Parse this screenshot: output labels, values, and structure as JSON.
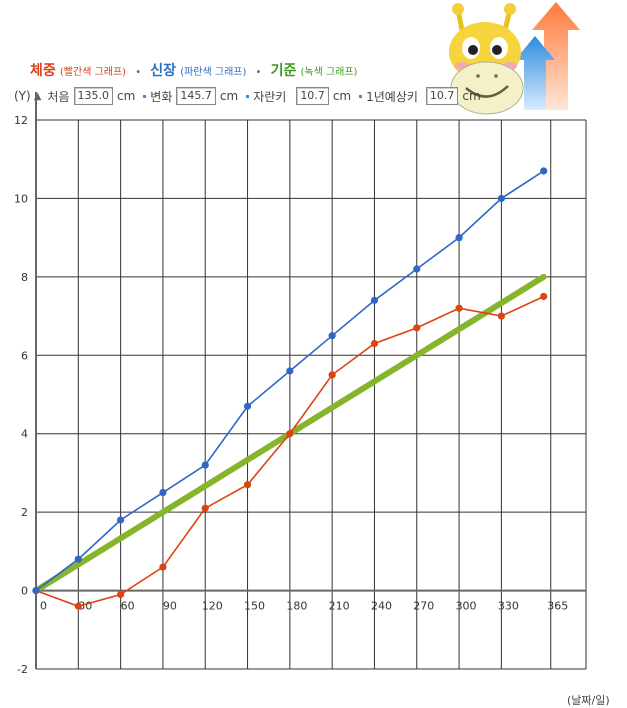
{
  "legend": {
    "weight": {
      "title": "체중",
      "sub": "(빨간색 그래프)"
    },
    "height": {
      "title": "신장",
      "sub": "(파란색 그래프)"
    },
    "standard": {
      "title": "기준",
      "sub": "(녹색 그래프)"
    },
    "separator": "•"
  },
  "inputs": {
    "y_label": "(Y)",
    "y_arrow": "▲",
    "start_label": "처음",
    "start_value": "135.0",
    "change_label": "변화",
    "change_value": "145.7",
    "grown_label": "자란키",
    "grown_value": "10.7",
    "year_label": "1년예상키",
    "year_value": "10.7",
    "unit": "cm"
  },
  "colors": {
    "weight": "#dd4411",
    "height": "#2f66c8",
    "standard": "#85b52a",
    "grid": "#333333"
  },
  "icons": [
    "giraffe-mascot-icon",
    "growth-arrows-icon"
  ],
  "chart_data": {
    "type": "line",
    "x_unit": "(날짜/일)",
    "x_ticks": [
      0,
      30,
      60,
      90,
      120,
      150,
      180,
      210,
      240,
      270,
      300,
      330,
      365
    ],
    "y_ticks": [
      -2,
      0,
      2,
      4,
      6,
      8,
      10,
      12
    ],
    "xlim": [
      0,
      390
    ],
    "ylim": [
      -2,
      12
    ],
    "grid": true,
    "series": [
      {
        "key": "height",
        "x": [
          0,
          30,
          60,
          90,
          120,
          150,
          180,
          210,
          240,
          270,
          300,
          330,
          360
        ],
        "y": [
          0,
          0.8,
          1.8,
          2.5,
          3.2,
          4.7,
          5.6,
          6.5,
          7.4,
          8.2,
          9.0,
          10.0,
          10.7
        ]
      },
      {
        "key": "weight",
        "x": [
          0,
          30,
          60,
          90,
          120,
          150,
          180,
          210,
          240,
          270,
          300,
          330,
          360
        ],
        "y": [
          0,
          -0.4,
          -0.1,
          0.6,
          2.1,
          2.7,
          4.0,
          5.5,
          6.3,
          6.7,
          7.2,
          7.0,
          7.5
        ]
      },
      {
        "key": "standard",
        "x": [
          0,
          360
        ],
        "y": [
          0,
          8
        ]
      }
    ]
  }
}
